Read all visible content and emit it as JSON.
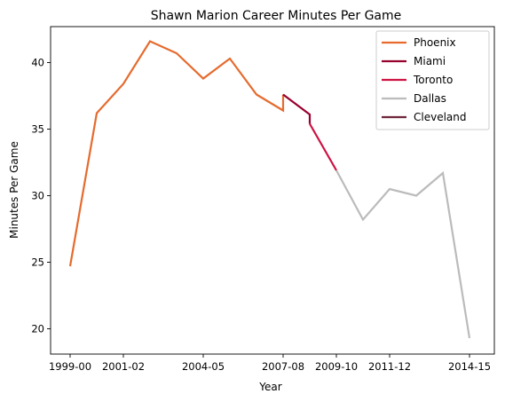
{
  "chart_data": {
    "type": "line",
    "title": "Shawn Marion Career Minutes Per Game",
    "xlabel": "Year",
    "ylabel": "Minutes Per Game",
    "x_ticks": [
      "1999-00",
      "2001-02",
      "2004-05",
      "2007-08",
      "2009-10",
      "2011-12",
      "2014-15"
    ],
    "y_ticks": [
      20,
      25,
      30,
      35,
      40
    ],
    "ylim": [
      18.1,
      42.7
    ],
    "legend_position": "top-right",
    "grid": false,
    "series": [
      {
        "name": "Phoenix",
        "color": "#e56b2e",
        "points": [
          [
            "1999-00",
            24.7
          ],
          [
            "2000-01",
            36.2
          ],
          [
            "2001-02",
            38.4
          ],
          [
            "2002-03",
            41.6
          ],
          [
            "2003-04",
            40.7
          ],
          [
            "2004-05",
            38.8
          ],
          [
            "2005-06",
            40.3
          ],
          [
            "2006-07",
            37.6
          ],
          [
            "2007-08",
            36.4
          ],
          [
            "2007-08",
            37.6
          ]
        ]
      },
      {
        "name": "Miami",
        "color": "#98002e",
        "points": [
          [
            "2007-08",
            37.6
          ],
          [
            "2008-09",
            36.1
          ],
          [
            "2008-09",
            35.4
          ]
        ]
      },
      {
        "name": "Toronto",
        "color": "#ce1141",
        "points": [
          [
            "2008-09",
            35.4
          ],
          [
            "2009-10",
            31.9
          ]
        ]
      },
      {
        "name": "Dallas",
        "color": "#bbbbbb",
        "points": [
          [
            "2009-10",
            31.9
          ],
          [
            "2010-11",
            28.2
          ],
          [
            "2011-12",
            30.5
          ],
          [
            "2012-13",
            30.0
          ],
          [
            "2013-14",
            31.7
          ],
          [
            "2014-15",
            19.3
          ]
        ]
      },
      {
        "name": "Cleveland",
        "color": "#6f263d",
        "points": []
      }
    ]
  }
}
